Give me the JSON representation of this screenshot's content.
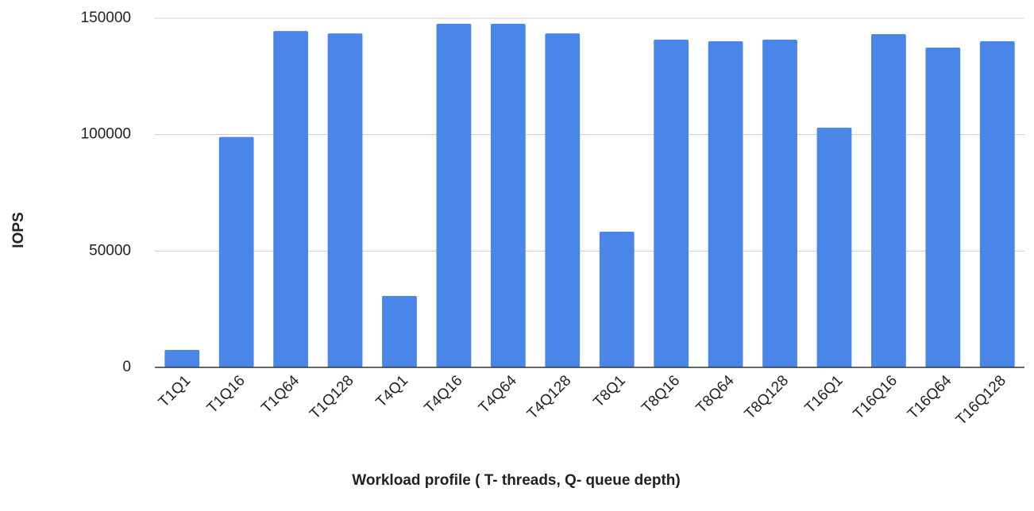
{
  "chart_data": {
    "type": "bar",
    "x_label": "Workload profile ( T- threads, Q- queue depth)",
    "y_label": "IOPS",
    "categories": [
      "T1Q1",
      "T1Q16",
      "T1Q64",
      "T1Q128",
      "T4Q1",
      "T4Q16",
      "T4Q64",
      "T4Q128",
      "T8Q1",
      "T8Q16",
      "T8Q64",
      "T8Q128",
      "T16Q1",
      "T16Q16",
      "T16Q64",
      "T16Q128"
    ],
    "values": [
      7500,
      99000,
      144500,
      143500,
      30700,
      147600,
      147600,
      143500,
      58300,
      140800,
      140100,
      140800,
      103000,
      143200,
      137400,
      140100
    ],
    "color": "#4a86e8",
    "ylim": [
      0,
      150000
    ],
    "yticks": [
      0,
      50000,
      100000,
      150000
    ],
    "grid": true
  }
}
